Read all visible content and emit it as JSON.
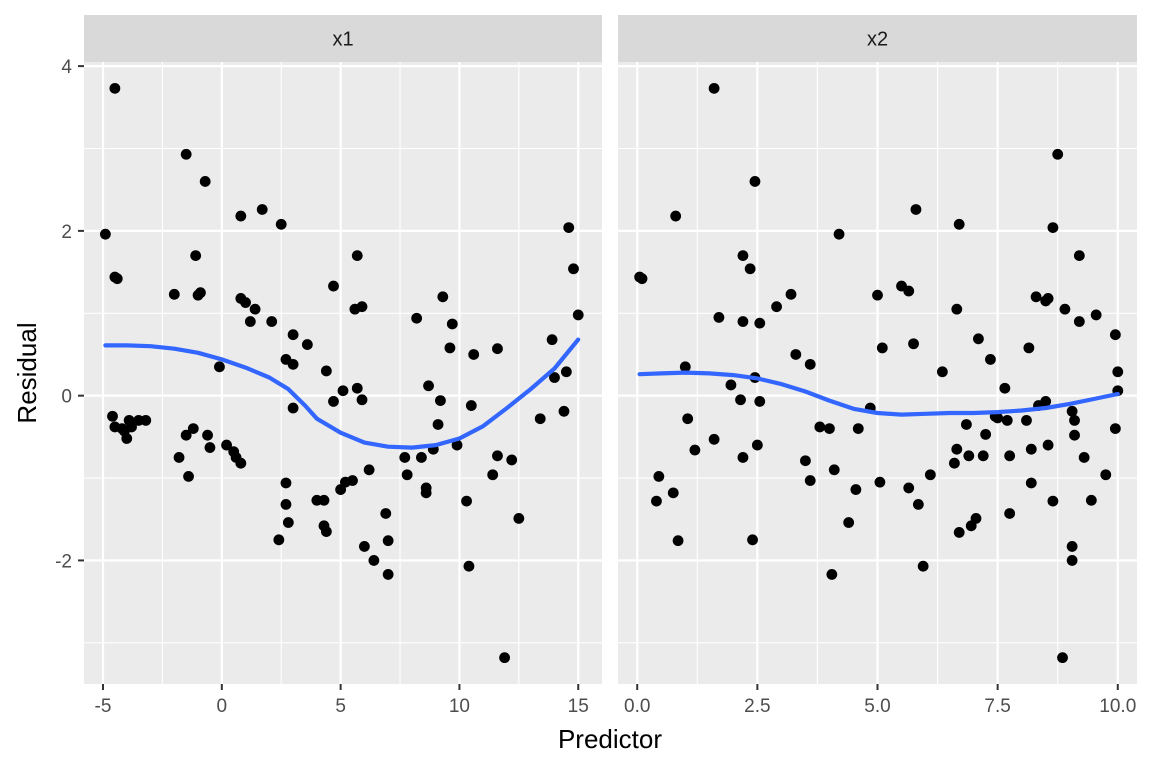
{
  "chart_data": {
    "type": "scatter",
    "xlabel": "Predictor",
    "ylabel": "Residual",
    "ylim": [
      -3.5,
      4.05
    ],
    "y_ticks": [
      "-2",
      "0",
      "2",
      "4"
    ],
    "y_tick_values": [
      -2,
      0,
      2,
      4
    ],
    "colors": {
      "panel_bg": "#EBEBEB",
      "strip_bg": "#D9D9D9",
      "grid": "#FFFFFF",
      "point": "#000000",
      "smooth": "#3366FF",
      "text": "#4D4D4D",
      "title": "#000000"
    },
    "facets": [
      {
        "strip_label": "x1",
        "xlim": [
          -5.8,
          16.0
        ],
        "x_ticks": [
          "-5",
          "0",
          "5",
          "10",
          "15"
        ],
        "x_tick_values": [
          -5,
          0,
          5,
          10,
          15
        ],
        "points": [
          [
            -4.9,
            1.96
          ],
          [
            -4.5,
            3.73
          ],
          [
            -4.5,
            1.44
          ],
          [
            -4.4,
            1.42
          ],
          [
            -4.6,
            -0.25
          ],
          [
            -4.5,
            -0.38
          ],
          [
            -4.2,
            -0.4
          ],
          [
            -4.1,
            -0.43
          ],
          [
            -4.0,
            -0.52
          ],
          [
            -3.9,
            -0.3
          ],
          [
            -3.8,
            -0.38
          ],
          [
            -3.5,
            -0.3
          ],
          [
            -3.2,
            -0.3
          ],
          [
            -2.0,
            1.23
          ],
          [
            -1.8,
            -0.75
          ],
          [
            -1.5,
            2.93
          ],
          [
            -1.5,
            -0.48
          ],
          [
            -1.4,
            -0.98
          ],
          [
            -1.2,
            -0.4
          ],
          [
            -1.1,
            1.7
          ],
          [
            -1.0,
            1.22
          ],
          [
            -0.9,
            1.25
          ],
          [
            -0.7,
            2.6
          ],
          [
            -0.6,
            -0.48
          ],
          [
            -0.5,
            -0.63
          ],
          [
            -0.1,
            0.35
          ],
          [
            0.2,
            -0.6
          ],
          [
            0.5,
            -0.68
          ],
          [
            0.6,
            -0.75
          ],
          [
            0.8,
            -0.82
          ],
          [
            0.8,
            2.18
          ],
          [
            0.8,
            1.18
          ],
          [
            1.0,
            1.13
          ],
          [
            1.2,
            0.9
          ],
          [
            1.4,
            1.05
          ],
          [
            1.7,
            2.26
          ],
          [
            2.1,
            0.9
          ],
          [
            2.5,
            2.08
          ],
          [
            2.4,
            -1.75
          ],
          [
            2.7,
            0.44
          ],
          [
            2.7,
            -1.06
          ],
          [
            2.7,
            -1.32
          ],
          [
            2.8,
            -1.54
          ],
          [
            3.0,
            -0.15
          ],
          [
            3.0,
            0.74
          ],
          [
            3.0,
            0.38
          ],
          [
            3.6,
            0.62
          ],
          [
            4.0,
            -1.27
          ],
          [
            4.3,
            -1.27
          ],
          [
            4.3,
            -1.58
          ],
          [
            4.4,
            -1.65
          ],
          [
            4.4,
            0.3
          ],
          [
            4.7,
            1.33
          ],
          [
            4.7,
            -0.07
          ],
          [
            5.0,
            -1.14
          ],
          [
            5.1,
            0.06
          ],
          [
            5.2,
            -1.05
          ],
          [
            5.5,
            -1.03
          ],
          [
            5.6,
            1.05
          ],
          [
            5.7,
            1.7
          ],
          [
            5.7,
            0.09
          ],
          [
            5.9,
            1.08
          ],
          [
            5.9,
            -0.05
          ],
          [
            6.0,
            -1.83
          ],
          [
            6.2,
            -0.9
          ],
          [
            6.4,
            -2.0
          ],
          [
            6.9,
            -1.43
          ],
          [
            7.0,
            -1.76
          ],
          [
            7.0,
            -2.17
          ],
          [
            7.7,
            -0.75
          ],
          [
            7.8,
            -0.96
          ],
          [
            8.2,
            0.94
          ],
          [
            8.4,
            -0.75
          ],
          [
            8.6,
            -1.12
          ],
          [
            8.6,
            -1.18
          ],
          [
            8.7,
            0.12
          ],
          [
            8.9,
            -0.65
          ],
          [
            9.1,
            -0.35
          ],
          [
            9.2,
            -0.06
          ],
          [
            9.3,
            1.2
          ],
          [
            9.7,
            0.87
          ],
          [
            9.6,
            0.58
          ],
          [
            9.9,
            -0.6
          ],
          [
            10.3,
            -1.28
          ],
          [
            10.4,
            -2.07
          ],
          [
            10.5,
            -0.12
          ],
          [
            10.6,
            0.5
          ],
          [
            11.4,
            -0.96
          ],
          [
            11.6,
            0.57
          ],
          [
            11.6,
            -0.73
          ],
          [
            11.9,
            -3.18
          ],
          [
            12.2,
            -0.78
          ],
          [
            12.5,
            -1.49
          ],
          [
            13.4,
            -0.28
          ],
          [
            13.9,
            0.68
          ],
          [
            14.0,
            0.22
          ],
          [
            14.4,
            -0.19
          ],
          [
            14.5,
            0.29
          ],
          [
            14.6,
            2.04
          ],
          [
            14.8,
            1.54
          ],
          [
            15.0,
            0.98
          ]
        ],
        "smooth": [
          [
            -4.9,
            0.61
          ],
          [
            -4.0,
            0.61
          ],
          [
            -3.0,
            0.6
          ],
          [
            -2.0,
            0.57
          ],
          [
            -1.0,
            0.52
          ],
          [
            0.0,
            0.44
          ],
          [
            1.0,
            0.34
          ],
          [
            2.0,
            0.22
          ],
          [
            2.8,
            0.08
          ],
          [
            3.5,
            -0.12
          ],
          [
            4.0,
            -0.28
          ],
          [
            5.0,
            -0.45
          ],
          [
            6.0,
            -0.57
          ],
          [
            7.0,
            -0.62
          ],
          [
            8.0,
            -0.63
          ],
          [
            9.0,
            -0.6
          ],
          [
            10.0,
            -0.52
          ],
          [
            11.0,
            -0.37
          ],
          [
            12.0,
            -0.15
          ],
          [
            13.0,
            0.08
          ],
          [
            14.0,
            0.33
          ],
          [
            15.0,
            0.68
          ]
        ]
      },
      {
        "strip_label": "x2",
        "xlim": [
          -0.4,
          10.4
        ],
        "x_ticks": [
          "0.0",
          "2.5",
          "5.0",
          "7.5",
          "10.0"
        ],
        "x_tick_values": [
          0,
          2.5,
          5.0,
          7.5,
          10.0
        ],
        "points": [
          [
            0.05,
            1.44
          ],
          [
            0.1,
            1.42
          ],
          [
            0.4,
            -1.28
          ],
          [
            0.45,
            -0.98
          ],
          [
            0.75,
            -1.18
          ],
          [
            0.8,
            2.18
          ],
          [
            0.85,
            -1.76
          ],
          [
            1.0,
            0.35
          ],
          [
            1.05,
            -0.28
          ],
          [
            1.2,
            -0.66
          ],
          [
            1.6,
            3.73
          ],
          [
            1.6,
            -0.53
          ],
          [
            1.7,
            0.95
          ],
          [
            1.95,
            0.13
          ],
          [
            2.15,
            -0.05
          ],
          [
            2.2,
            1.7
          ],
          [
            2.2,
            0.9
          ],
          [
            2.2,
            -0.75
          ],
          [
            2.35,
            1.54
          ],
          [
            2.4,
            -1.75
          ],
          [
            2.45,
            2.6
          ],
          [
            2.45,
            0.22
          ],
          [
            2.5,
            -0.6
          ],
          [
            2.55,
            0.88
          ],
          [
            2.55,
            -0.07
          ],
          [
            2.9,
            1.08
          ],
          [
            3.2,
            1.23
          ],
          [
            3.3,
            0.5
          ],
          [
            3.5,
            -0.79
          ],
          [
            3.6,
            0.38
          ],
          [
            3.6,
            -1.03
          ],
          [
            3.8,
            -0.38
          ],
          [
            4.0,
            -0.4
          ],
          [
            4.05,
            -2.17
          ],
          [
            4.1,
            -0.9
          ],
          [
            4.2,
            1.96
          ],
          [
            4.4,
            -1.54
          ],
          [
            4.55,
            -1.14
          ],
          [
            4.6,
            -0.4
          ],
          [
            4.85,
            -0.15
          ],
          [
            5.0,
            1.22
          ],
          [
            5.05,
            -1.05
          ],
          [
            5.1,
            0.58
          ],
          [
            5.5,
            1.33
          ],
          [
            5.65,
            1.27
          ],
          [
            5.65,
            -1.12
          ],
          [
            5.75,
            0.63
          ],
          [
            5.8,
            2.26
          ],
          [
            5.85,
            -1.32
          ],
          [
            5.95,
            -2.07
          ],
          [
            6.1,
            -0.96
          ],
          [
            6.35,
            0.29
          ],
          [
            6.6,
            -0.82
          ],
          [
            6.65,
            -0.65
          ],
          [
            6.65,
            1.05
          ],
          [
            6.7,
            2.08
          ],
          [
            6.7,
            -1.66
          ],
          [
            6.85,
            -0.35
          ],
          [
            6.9,
            -0.73
          ],
          [
            6.95,
            -1.58
          ],
          [
            7.05,
            -1.49
          ],
          [
            7.1,
            0.69
          ],
          [
            7.2,
            -0.73
          ],
          [
            7.25,
            -0.47
          ],
          [
            7.35,
            0.44
          ],
          [
            7.45,
            -0.25
          ],
          [
            7.5,
            -0.27
          ],
          [
            7.65,
            0.09
          ],
          [
            7.7,
            -0.3
          ],
          [
            7.75,
            -0.73
          ],
          [
            7.75,
            -1.43
          ],
          [
            8.1,
            -0.3
          ],
          [
            8.15,
            0.58
          ],
          [
            8.2,
            -0.65
          ],
          [
            8.2,
            -1.06
          ],
          [
            8.3,
            1.2
          ],
          [
            8.35,
            -0.12
          ],
          [
            8.5,
            -0.07
          ],
          [
            8.5,
            1.15
          ],
          [
            8.55,
            -0.6
          ],
          [
            8.55,
            1.18
          ],
          [
            8.65,
            -1.28
          ],
          [
            8.65,
            2.04
          ],
          [
            8.75,
            2.93
          ],
          [
            8.85,
            -3.18
          ],
          [
            8.9,
            1.05
          ],
          [
            9.05,
            -2.0
          ],
          [
            9.05,
            -0.19
          ],
          [
            9.1,
            -0.3
          ],
          [
            9.1,
            -0.48
          ],
          [
            9.2,
            0.9
          ],
          [
            9.2,
            1.7
          ],
          [
            9.3,
            -0.75
          ],
          [
            9.45,
            -1.27
          ],
          [
            9.55,
            0.98
          ],
          [
            9.75,
            -0.96
          ],
          [
            9.95,
            0.74
          ],
          [
            10.0,
            0.29
          ],
          [
            10.0,
            0.06
          ],
          [
            9.95,
            -0.4
          ],
          [
            9.05,
            -1.83
          ]
        ],
        "smooth": [
          [
            0.05,
            0.26
          ],
          [
            0.5,
            0.27
          ],
          [
            1.0,
            0.28
          ],
          [
            1.5,
            0.27
          ],
          [
            2.0,
            0.25
          ],
          [
            2.5,
            0.21
          ],
          [
            3.0,
            0.14
          ],
          [
            3.5,
            0.05
          ],
          [
            4.0,
            -0.06
          ],
          [
            4.5,
            -0.16
          ],
          [
            5.0,
            -0.21
          ],
          [
            5.5,
            -0.23
          ],
          [
            6.0,
            -0.22
          ],
          [
            6.5,
            -0.21
          ],
          [
            7.0,
            -0.21
          ],
          [
            7.5,
            -0.2
          ],
          [
            8.0,
            -0.18
          ],
          [
            8.5,
            -0.15
          ],
          [
            9.0,
            -0.1
          ],
          [
            9.5,
            -0.04
          ],
          [
            10.0,
            0.02
          ]
        ]
      }
    ]
  }
}
